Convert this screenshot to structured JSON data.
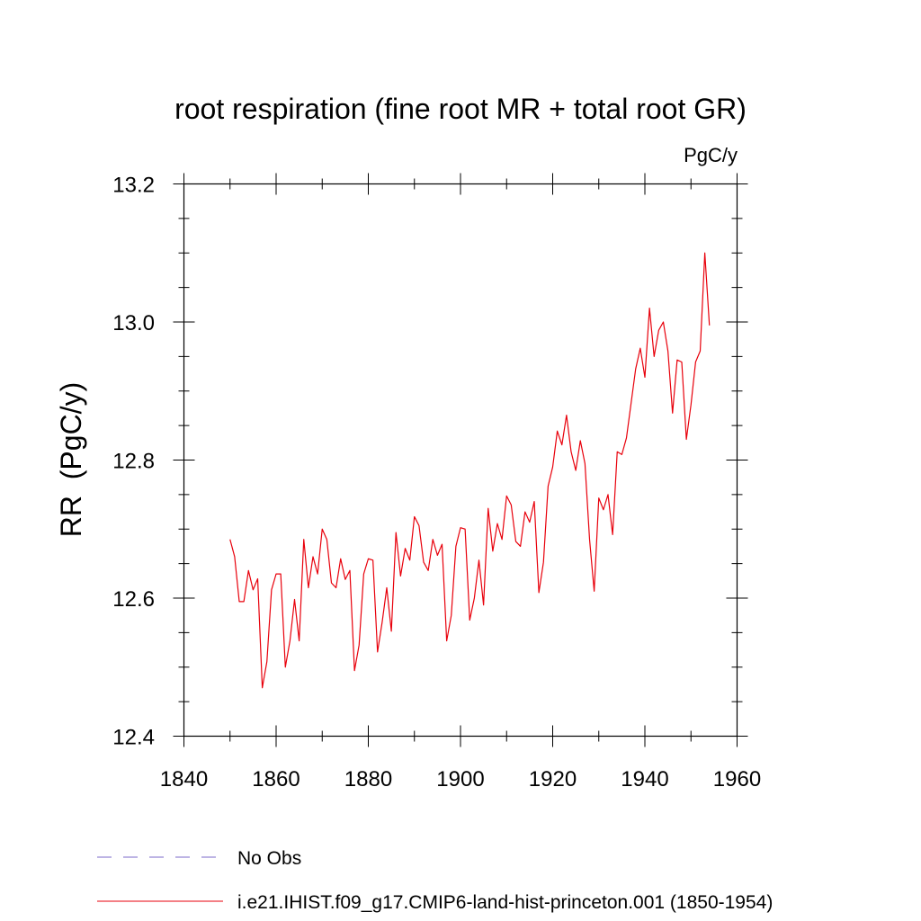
{
  "chart_data": {
    "type": "line",
    "title": "root respiration (fine root MR + total root GR)",
    "units_label": "PgC/y",
    "ylabel": "RR  (PgC/y)",
    "xlabel": "",
    "xlim": [
      1840,
      1960
    ],
    "ylim": [
      12.4,
      13.2
    ],
    "x_ticks": [
      1840,
      1860,
      1880,
      1900,
      1920,
      1940,
      1960
    ],
    "x_tick_labels": [
      "1840",
      "1860",
      "1880",
      "1900",
      "1920",
      "1940",
      "1960"
    ],
    "y_ticks": [
      12.4,
      12.6,
      12.8,
      13.0,
      13.2
    ],
    "y_tick_labels": [
      "12.4",
      "12.6",
      "12.8",
      "13.0",
      "13.2"
    ],
    "x_minor_step": 10,
    "y_minor_step": 0.05,
    "grid": false,
    "legend_position": "bottom",
    "legend": [
      {
        "label": "No Obs",
        "color": "#7b68c8",
        "dash": "dashed"
      },
      {
        "label": "i.e21.IHIST.f09_g17.CMIP6-land-hist-princeton.001 (1850-1954)",
        "color": "#e8000b",
        "dash": "solid"
      }
    ],
    "series": [
      {
        "name": "i.e21.IHIST.f09_g17.CMIP6-land-hist-princeton.001 (1850-1954)",
        "color": "#e8000b",
        "x": [
          1850,
          1851,
          1852,
          1853,
          1854,
          1855,
          1856,
          1857,
          1858,
          1859,
          1860,
          1861,
          1862,
          1863,
          1864,
          1865,
          1866,
          1867,
          1868,
          1869,
          1870,
          1871,
          1872,
          1873,
          1874,
          1875,
          1876,
          1877,
          1878,
          1879,
          1880,
          1881,
          1882,
          1883,
          1884,
          1885,
          1886,
          1887,
          1888,
          1889,
          1890,
          1891,
          1892,
          1893,
          1894,
          1895,
          1896,
          1897,
          1898,
          1899,
          1900,
          1901,
          1902,
          1903,
          1904,
          1905,
          1906,
          1907,
          1908,
          1909,
          1910,
          1911,
          1912,
          1913,
          1914,
          1915,
          1916,
          1917,
          1918,
          1919,
          1920,
          1921,
          1922,
          1923,
          1924,
          1925,
          1926,
          1927,
          1928,
          1929,
          1930,
          1931,
          1932,
          1933,
          1934,
          1935,
          1936,
          1937,
          1938,
          1939,
          1940,
          1941,
          1942,
          1943,
          1944,
          1945,
          1946,
          1947,
          1948,
          1949,
          1950,
          1951,
          1952,
          1953,
          1954
        ],
        "y": [
          12.685,
          12.66,
          12.595,
          12.595,
          12.64,
          12.612,
          12.628,
          12.47,
          12.508,
          12.612,
          12.635,
          12.635,
          12.5,
          12.538,
          12.598,
          12.538,
          12.685,
          12.615,
          12.66,
          12.635,
          12.7,
          12.685,
          12.622,
          12.615,
          12.657,
          12.627,
          12.64,
          12.495,
          12.532,
          12.635,
          12.657,
          12.655,
          12.522,
          12.565,
          12.615,
          12.552,
          12.695,
          12.632,
          12.672,
          12.655,
          12.718,
          12.705,
          12.652,
          12.64,
          12.685,
          12.662,
          12.678,
          12.538,
          12.575,
          12.675,
          12.702,
          12.7,
          12.568,
          12.6,
          12.655,
          12.59,
          12.73,
          12.668,
          12.708,
          12.685,
          12.748,
          12.735,
          12.682,
          12.675,
          12.725,
          12.71,
          12.74,
          12.608,
          12.652,
          12.762,
          12.79,
          12.842,
          12.822,
          12.865,
          12.812,
          12.785,
          12.828,
          12.795,
          12.685,
          12.61,
          12.745,
          12.728,
          12.75,
          12.692,
          12.812,
          12.808,
          12.832,
          12.882,
          12.932,
          12.962,
          12.92,
          13.02,
          12.95,
          12.988,
          13.0,
          12.958,
          12.868,
          12.945,
          12.942,
          12.83,
          12.88,
          12.942,
          12.958,
          13.1,
          12.995
        ]
      }
    ]
  }
}
